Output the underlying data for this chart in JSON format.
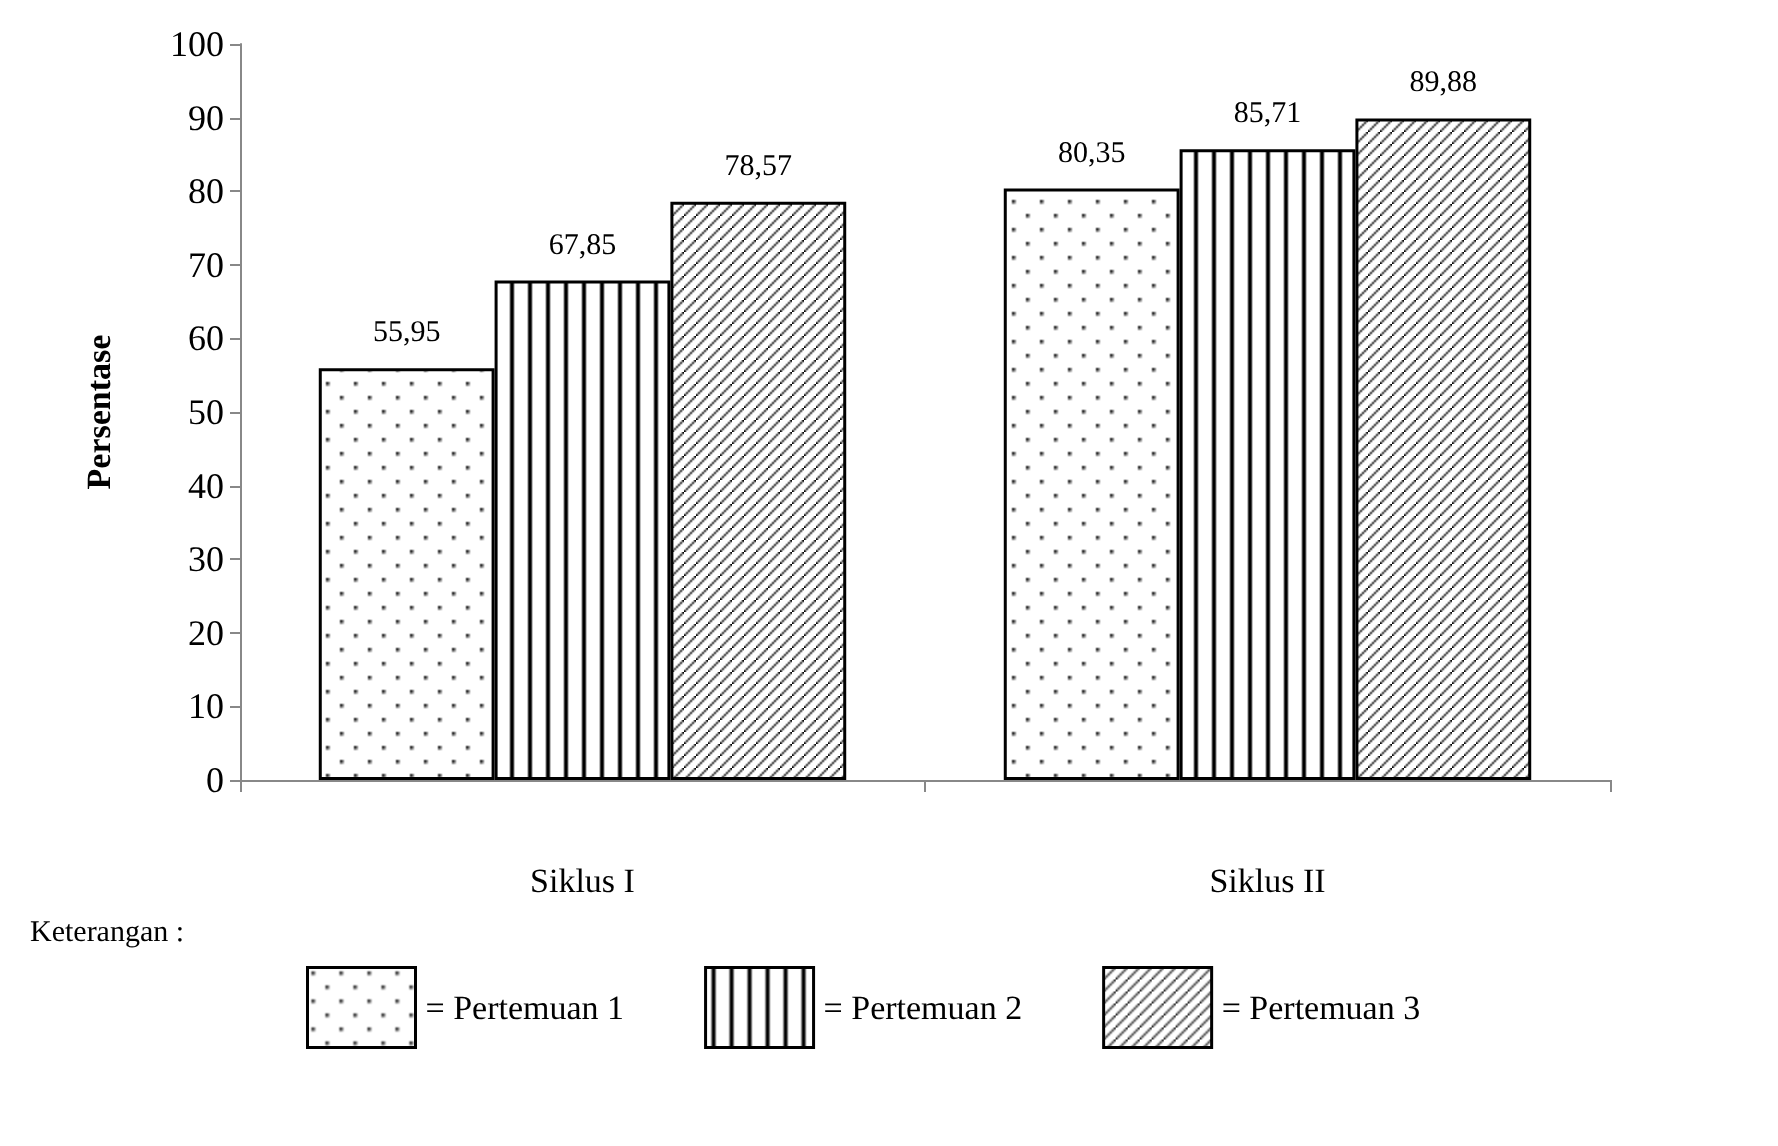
{
  "chart_data": {
    "type": "bar",
    "ylabel": "Persentase",
    "categories": [
      "Siklus I",
      "Siklus II"
    ],
    "series": [
      {
        "name": "= Pertemuan 1",
        "color": "#000000",
        "values": [
          55.95,
          80.35
        ],
        "value_labels": [
          "55,95",
          "80,35"
        ]
      },
      {
        "name": "= Pertemuan 2",
        "color": "#000000",
        "values": [
          67.85,
          85.71
        ],
        "value_labels": [
          "67,85",
          "85,71"
        ]
      },
      {
        "name": "= Pertemuan 3",
        "color": "#000000",
        "values": [
          78.57,
          89.88
        ],
        "value_labels": [
          "78,57",
          "89,88"
        ]
      }
    ],
    "ylim": [
      0,
      100
    ],
    "yticks": [
      0,
      10,
      20,
      30,
      40,
      50,
      60,
      70,
      80,
      90,
      100
    ],
    "grid": false,
    "legend": "bottom",
    "annotations": [
      "Keterangan :"
    ]
  }
}
